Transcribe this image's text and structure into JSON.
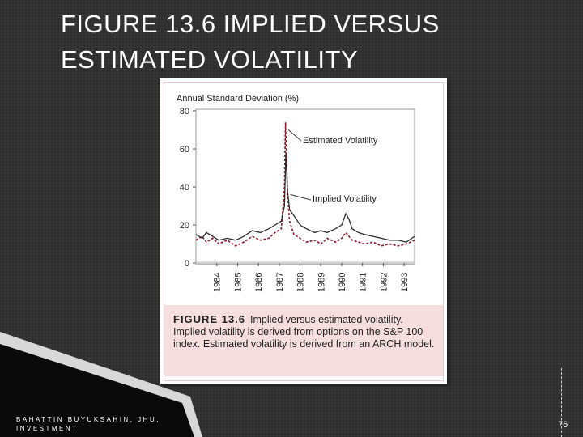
{
  "slide": {
    "title_line1": "FIGURE 13.6 IMPLIED VERSUS",
    "title_line2": "ESTIMATED VOLATILITY",
    "footer_line1": "BAHATTIN BUYUKSAHIN, JHU,",
    "footer_line2": "INVESTMENT",
    "page_number": "76"
  },
  "figure": {
    "caption_label": "FIGURE 13.6",
    "caption_text": "Implied versus estimated volatility. Implied volatility is derived from options on the S&P 100 index. Estimated volatility is derived from an ARCH model."
  },
  "chart_data": {
    "type": "line",
    "title": "",
    "ylabel": "Annual Standard Deviation (%)",
    "xlabel": "",
    "ylim": [
      0,
      80
    ],
    "xlim": [
      1983.5,
      1994.0
    ],
    "yticks": [
      0,
      20,
      40,
      60,
      80
    ],
    "xticks": [
      "1984",
      "1985",
      "1986",
      "1987",
      "1988",
      "1989",
      "1990",
      "1991",
      "1992",
      "1993"
    ],
    "grid": false,
    "annotations": [
      "Estimated Volatility",
      "Implied Volatility"
    ],
    "series": [
      {
        "name": "Estimated Volatility",
        "style": "dashed",
        "color": "#8b1a2b",
        "x": [
          1983.5,
          1983.8,
          1984.0,
          1984.3,
          1984.6,
          1985.0,
          1985.4,
          1985.8,
          1986.2,
          1986.6,
          1987.0,
          1987.3,
          1987.6,
          1987.75,
          1987.8,
          1987.85,
          1987.9,
          1988.0,
          1988.2,
          1988.5,
          1988.8,
          1989.2,
          1989.5,
          1989.8,
          1990.2,
          1990.5,
          1990.7,
          1990.85,
          1991.0,
          1991.3,
          1991.6,
          1992.0,
          1992.4,
          1992.8,
          1993.2,
          1993.6,
          1994.0
        ],
        "y": [
          12,
          14,
          11,
          13,
          10,
          12,
          9,
          11,
          14,
          12,
          13,
          16,
          18,
          40,
          74,
          55,
          35,
          22,
          15,
          13,
          11,
          12,
          10,
          13,
          11,
          13,
          16,
          14,
          12,
          11,
          10,
          11,
          9,
          10,
          9,
          10,
          12
        ]
      },
      {
        "name": "Implied Volatility",
        "style": "solid",
        "color": "#2b2b2b",
        "x": [
          1983.5,
          1983.8,
          1984.0,
          1984.3,
          1984.6,
          1985.0,
          1985.4,
          1985.8,
          1986.2,
          1986.6,
          1987.0,
          1987.3,
          1987.6,
          1987.75,
          1987.82,
          1987.9,
          1988.0,
          1988.2,
          1988.5,
          1988.8,
          1989.2,
          1989.5,
          1989.8,
          1990.2,
          1990.5,
          1990.7,
          1990.85,
          1991.0,
          1991.3,
          1991.6,
          1992.0,
          1992.4,
          1992.8,
          1993.2,
          1993.6,
          1994.0
        ],
        "y": [
          15,
          13,
          16,
          14,
          12,
          13,
          12,
          14,
          17,
          16,
          18,
          20,
          22,
          30,
          58,
          38,
          28,
          25,
          20,
          18,
          16,
          17,
          16,
          18,
          20,
          26,
          23,
          18,
          16,
          15,
          14,
          13,
          12,
          12,
          11,
          14
        ]
      }
    ]
  }
}
